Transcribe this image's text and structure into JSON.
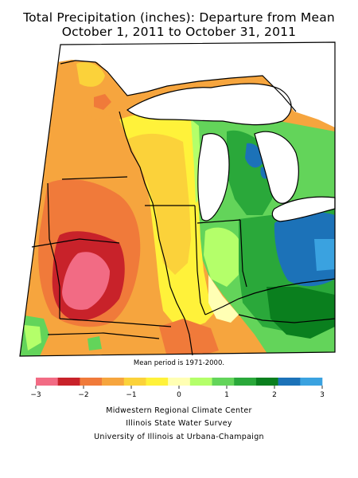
{
  "title_line1": "Total Precipitation (inches): Departure from Mean",
  "title_line2": "October 1, 2011 to October 31, 2011",
  "note": "Mean period is 1971-2000.",
  "legend": {
    "colors": [
      "#f26b84",
      "#c8222a",
      "#f07a3a",
      "#f6a53e",
      "#fbd23a",
      "#fff23a",
      "#ffffb4",
      "#b4ff6a",
      "#63d45a",
      "#2aa83a",
      "#0a7f1e",
      "#1c72b8",
      "#3aa2e0"
    ],
    "ticks": [
      {
        "value": -3,
        "label": "−3"
      },
      {
        "value": -2,
        "label": "−2"
      },
      {
        "value": -1,
        "label": "−1"
      },
      {
        "value": 0,
        "label": "0"
      },
      {
        "value": 1,
        "label": "1"
      },
      {
        "value": 2,
        "label": "2"
      },
      {
        "value": 3,
        "label": "3"
      }
    ]
  },
  "credits": [
    "Midwestern Regional Climate Center",
    "Illinois State Water Survey",
    "University of Illinois at Urbana-Champaign"
  ]
}
